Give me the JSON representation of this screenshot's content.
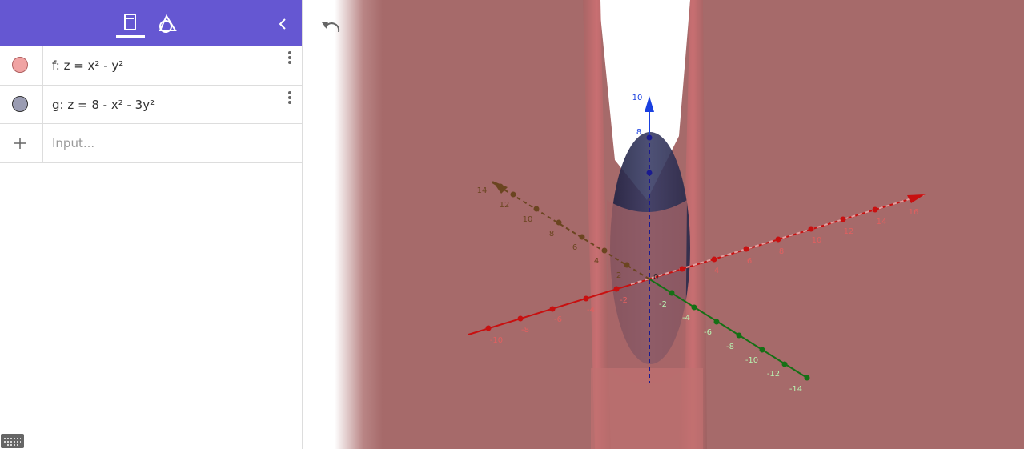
{
  "algebra_view": {
    "items": [
      {
        "label": "f: z = x² - y²"
      },
      {
        "label": "g: z = 8 - x² - 3y²"
      }
    ],
    "input_placeholder": "Input..."
  },
  "graphics_3d": {
    "x_axis_labels": [
      "-10",
      "-8",
      "-6",
      "-4",
      "-2",
      "4",
      "6",
      "8",
      "10",
      "12",
      "14",
      "16"
    ],
    "y_axis_labels": [
      "14",
      "12",
      "10",
      "8",
      "6",
      "4",
      "2"
    ],
    "y_negative_axis_labels": [
      "-2",
      "-4",
      "-6",
      "-8",
      "-10",
      "-12",
      "-14"
    ],
    "z_axis_labels": [
      "10",
      "8"
    ],
    "origin_label": "0"
  }
}
